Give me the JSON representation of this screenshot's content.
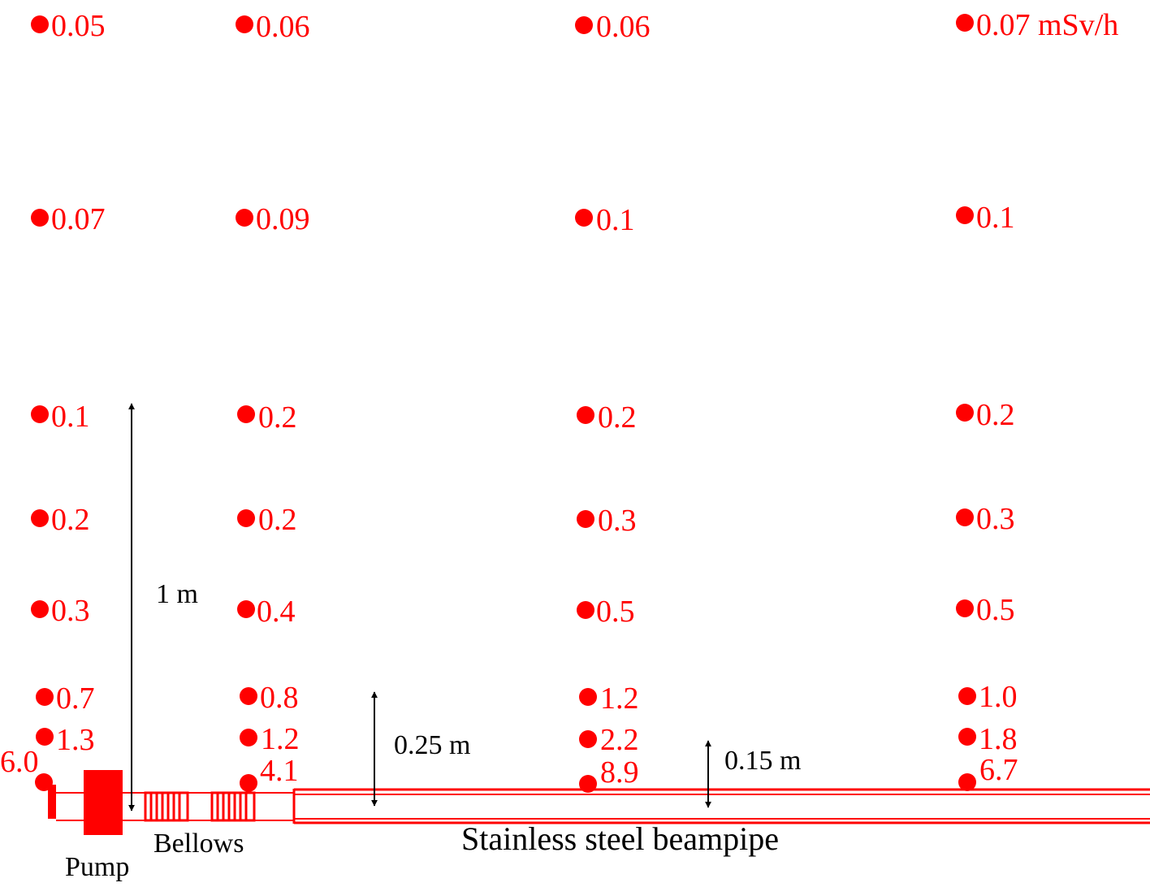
{
  "colors": {
    "measurement": "#ff0000",
    "annotation": "#000000",
    "background": "#ffffff"
  },
  "unit": "mSv/h",
  "measurements": [
    {
      "id": "c1-r1",
      "label": "0.05"
    },
    {
      "id": "c2-r1",
      "label": "0.06"
    },
    {
      "id": "c3-r1",
      "label": "0.06"
    },
    {
      "id": "c4-r1",
      "label": "0.07 mSv/h"
    },
    {
      "id": "c1-r2",
      "label": "0.07"
    },
    {
      "id": "c2-r2",
      "label": "0.09"
    },
    {
      "id": "c3-r2",
      "label": "0.1"
    },
    {
      "id": "c4-r2",
      "label": "0.1"
    },
    {
      "id": "c1-r3",
      "label": "0.1"
    },
    {
      "id": "c2-r3",
      "label": "0.2"
    },
    {
      "id": "c3-r3",
      "label": "0.2"
    },
    {
      "id": "c4-r3",
      "label": "0.2"
    },
    {
      "id": "c1-r4",
      "label": "0.2"
    },
    {
      "id": "c2-r4",
      "label": "0.2"
    },
    {
      "id": "c3-r4",
      "label": "0.3"
    },
    {
      "id": "c4-r4",
      "label": "0.3"
    },
    {
      "id": "c1-r5",
      "label": "0.3"
    },
    {
      "id": "c2-r5",
      "label": "0.4"
    },
    {
      "id": "c3-r5",
      "label": "0.5"
    },
    {
      "id": "c4-r5",
      "label": "0.5"
    },
    {
      "id": "c1-r6",
      "label": "0.7"
    },
    {
      "id": "c2-r6",
      "label": "0.8"
    },
    {
      "id": "c3-r6",
      "label": "1.2"
    },
    {
      "id": "c4-r6",
      "label": "1.0"
    },
    {
      "id": "c1-r7",
      "label": "1.3"
    },
    {
      "id": "c2-r7",
      "label": "1.2"
    },
    {
      "id": "c3-r7",
      "label": "2.2"
    },
    {
      "id": "c4-r7",
      "label": "1.8"
    },
    {
      "id": "c1-r8",
      "label": "6.0"
    },
    {
      "id": "c2-r8",
      "label": "4.1"
    },
    {
      "id": "c3-r8",
      "label": "8.9"
    },
    {
      "id": "c4-r8",
      "label": "6.7"
    }
  ],
  "dimensions": {
    "one_meter": "1 m",
    "quarter_meter": "0.25 m",
    "fifteen_cm": "0.15 m"
  },
  "components": {
    "pump": "Pump",
    "bellows": "Bellows",
    "beampipe": "Stainless steel beampipe"
  }
}
